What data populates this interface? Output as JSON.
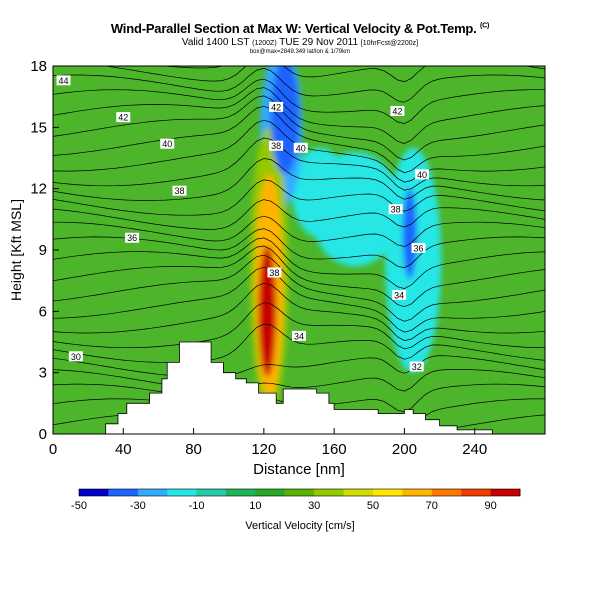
{
  "chart_data": {
    "type": "heatmap",
    "title": "Wind-Parallel Section at Max W: Vertical Velocity & Pot.Temp.",
    "title_mark": "(C)",
    "subtitle_main": "Valid 1400 LST",
    "subtitle_small1": "(1200Z)",
    "subtitle_main2": "TUE 29 Nov 2011",
    "subtitle_small2": "[10hrFcst@2200z]",
    "subtitle_line2": "box@max=2849.349 lat/lon & 1/79km",
    "xlabel": "Distance [nm]",
    "ylabel": "Height [Kft MSL]",
    "xlim": [
      0,
      280
    ],
    "ylim": [
      0,
      18
    ],
    "x_ticks": [
      "0",
      "40",
      "80",
      "120",
      "160",
      "200",
      "240"
    ],
    "y_ticks": [
      "0",
      "3",
      "6",
      "9",
      "12",
      "15",
      "18"
    ],
    "colorbar": {
      "label": "Vertical Velocity [cm/s]",
      "range": [
        -50,
        100
      ],
      "tick_labels": [
        "-50",
        "-30",
        "-10",
        "10",
        "30",
        "50",
        "70",
        "90"
      ],
      "colors": [
        "#0000c8",
        "#1e64ff",
        "#32aaff",
        "#28e6e6",
        "#28c8aa",
        "#1eb45a",
        "#28aa28",
        "#5ab400",
        "#96c800",
        "#d2dc00",
        "#ffe600",
        "#ffb400",
        "#ff7800",
        "#f03c00",
        "#c80000"
      ]
    },
    "terrain_profile_nm_kft": [
      [
        0,
        0
      ],
      [
        30,
        0
      ],
      [
        30,
        0.5
      ],
      [
        37,
        0.5
      ],
      [
        37,
        1
      ],
      [
        42,
        1
      ],
      [
        42,
        1.5
      ],
      [
        55,
        1.5
      ],
      [
        55,
        2
      ],
      [
        62,
        2
      ],
      [
        62,
        2.7
      ],
      [
        65,
        2.7
      ],
      [
        65,
        3.5
      ],
      [
        72,
        3.5
      ],
      [
        72,
        4.5
      ],
      [
        90,
        4.5
      ],
      [
        90,
        3.5
      ],
      [
        97,
        3.5
      ],
      [
        97,
        3
      ],
      [
        104,
        3
      ],
      [
        104,
        2.7
      ],
      [
        110,
        2.7
      ],
      [
        110,
        2.5
      ],
      [
        117,
        2.5
      ],
      [
        117,
        2
      ],
      [
        127,
        2
      ],
      [
        127,
        1.5
      ],
      [
        131,
        1.5
      ],
      [
        131,
        2.2
      ],
      [
        150,
        2.2
      ],
      [
        150,
        2
      ],
      [
        157,
        2
      ],
      [
        157,
        1.5
      ],
      [
        160,
        1.5
      ],
      [
        160,
        1.2
      ],
      [
        185,
        1.2
      ],
      [
        185,
        1
      ],
      [
        200,
        1
      ],
      [
        200,
        1.2
      ],
      [
        205,
        1.2
      ],
      [
        205,
        1
      ],
      [
        212,
        1
      ],
      [
        212,
        0.7
      ],
      [
        220,
        0.7
      ],
      [
        220,
        0.4
      ],
      [
        230,
        0.4
      ],
      [
        230,
        0.2
      ],
      [
        250,
        0.2
      ],
      [
        250,
        0
      ],
      [
        280,
        0
      ]
    ],
    "theta_contour_labels": [
      {
        "text": "44",
        "x": 6,
        "y": 17.3
      },
      {
        "text": "42",
        "x": 40,
        "y": 15.5
      },
      {
        "text": "40",
        "x": 65,
        "y": 14.2
      },
      {
        "text": "38",
        "x": 72,
        "y": 11.9
      },
      {
        "text": "36",
        "x": 45,
        "y": 9.6
      },
      {
        "text": "30",
        "x": 13,
        "y": 3.8
      },
      {
        "text": "42",
        "x": 127,
        "y": 16.0
      },
      {
        "text": "38",
        "x": 127,
        "y": 14.1
      },
      {
        "text": "40",
        "x": 141,
        "y": 14.0
      },
      {
        "text": "42",
        "x": 196,
        "y": 15.8
      },
      {
        "text": "40",
        "x": 210,
        "y": 12.7
      },
      {
        "text": "38",
        "x": 195,
        "y": 11.0
      },
      {
        "text": "36",
        "x": 208,
        "y": 9.1
      },
      {
        "text": "34",
        "x": 197,
        "y": 6.8
      },
      {
        "text": "38",
        "x": 126,
        "y": 7.9
      },
      {
        "text": "34",
        "x": 140,
        "y": 4.8
      },
      {
        "text": "32",
        "x": 207,
        "y": 3.3
      }
    ],
    "w_features": [
      {
        "x": 122,
        "y": 6.0,
        "rx": 5,
        "ry": 3.2,
        "value": 90
      },
      {
        "x": 123,
        "y": 7.2,
        "rx": 8,
        "ry": 5.5,
        "value": 60
      },
      {
        "x": 123,
        "y": 8.0,
        "rx": 11,
        "ry": 7.0,
        "value": 35
      },
      {
        "x": 172,
        "y": 11.0,
        "rx": 26,
        "ry": 2.8,
        "value": -15
      },
      {
        "x": 152,
        "y": 11.8,
        "rx": 16,
        "ry": 2.2,
        "value": -15
      },
      {
        "x": 205,
        "y": 8.5,
        "rx": 16,
        "ry": 5.5,
        "value": -15
      },
      {
        "x": 203,
        "y": 9.8,
        "rx": 4,
        "ry": 2.2,
        "value": -40
      },
      {
        "x": 132,
        "y": 15.5,
        "rx": 8,
        "ry": 2.8,
        "value": -40
      },
      {
        "x": 130,
        "y": 15.0,
        "rx": 12,
        "ry": 4.0,
        "value": -25
      },
      {
        "x": 125,
        "y": 9.5,
        "rx": 5,
        "ry": 3.0,
        "value": 20
      }
    ]
  }
}
